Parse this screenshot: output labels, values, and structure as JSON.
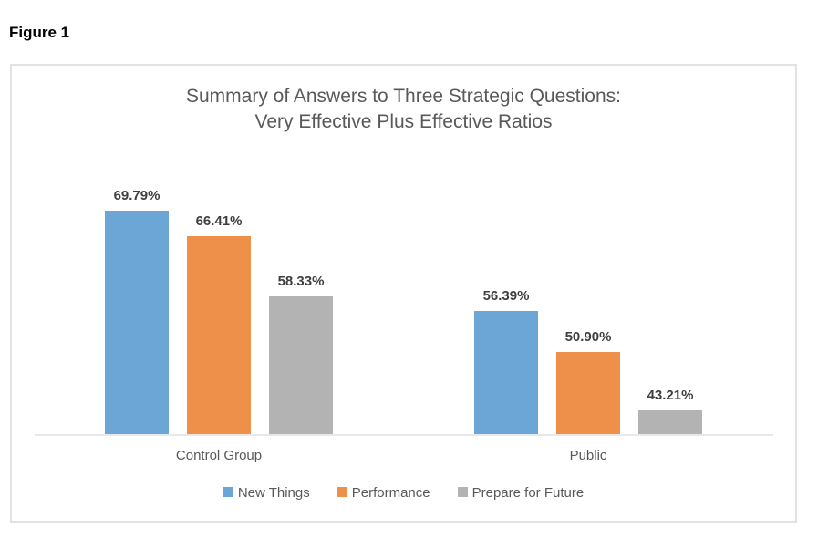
{
  "figure_label": "Figure 1",
  "chart_data": {
    "type": "bar",
    "title_line1": "Summary of Answers to Three Strategic Questions:",
    "title_line2": "Very Effective Plus Effective Ratios",
    "categories": [
      "Control Group",
      "Public"
    ],
    "series": [
      {
        "name": "New Things",
        "color": "#6CA6D7",
        "values": [
          69.79,
          56.39
        ],
        "labels": [
          "69.79%",
          "56.39%"
        ]
      },
      {
        "name": "Performance",
        "color": "#EE9049",
        "values": [
          66.41,
          50.9
        ],
        "labels": [
          "66.41%",
          "50.90%"
        ]
      },
      {
        "name": "Prepare for Future",
        "color": "#B3B3B3",
        "values": [
          58.33,
          43.21
        ],
        "labels": [
          "58.33%",
          "43.21%"
        ]
      }
    ],
    "ylim": [
      40,
      75
    ],
    "y_axis_visible": false,
    "grid": false,
    "data_labels": true,
    "legend_position": "bottom",
    "baseline_color": "#e8e8e8"
  }
}
